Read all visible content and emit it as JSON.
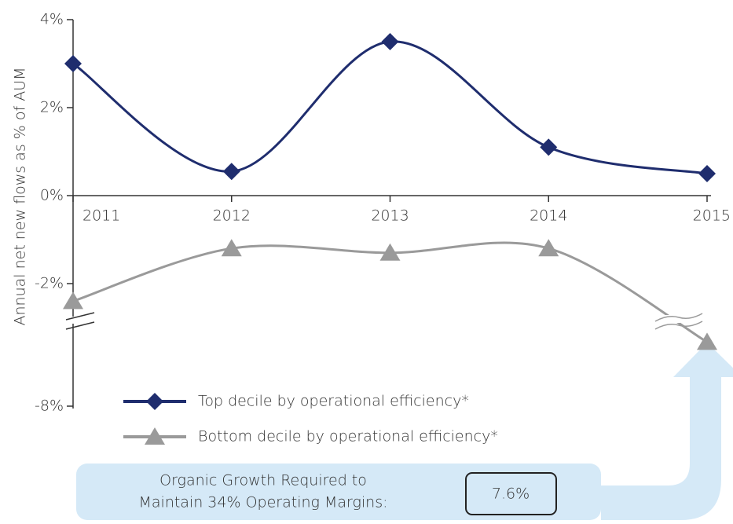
{
  "chart_data": {
    "type": "line",
    "y_label": "Annual net new flows as % of AUM",
    "categories": [
      "2011",
      "2012",
      "2013",
      "2014",
      "2015"
    ],
    "series": [
      {
        "name": "Top decile by operational efficiency*",
        "color": "#1f2d6e",
        "marker": "diamond",
        "values": [
          3.0,
          0.55,
          3.5,
          1.1,
          0.5
        ]
      },
      {
        "name": "Bottom decile by operational efficiency*",
        "color": "#9a9a9a",
        "marker": "triangle",
        "values": [
          -2.4,
          -1.2,
          -1.3,
          -1.2,
          -6.8
        ]
      }
    ],
    "ylim": [
      -8,
      4
    ],
    "axis_break": [
      -2.8,
      -6.5
    ],
    "yticks": [
      {
        "value": 4,
        "label": "4%"
      },
      {
        "value": 2,
        "label": "2%"
      },
      {
        "value": 0,
        "label": "0%"
      },
      {
        "value": -2,
        "label": "-2%"
      },
      {
        "value": -8,
        "label": "-8%"
      }
    ],
    "annotation": {
      "text_lines": [
        "Organic Growth Required to",
        "Maintain 34% Operating Margins:"
      ],
      "value": "7.6%"
    }
  }
}
